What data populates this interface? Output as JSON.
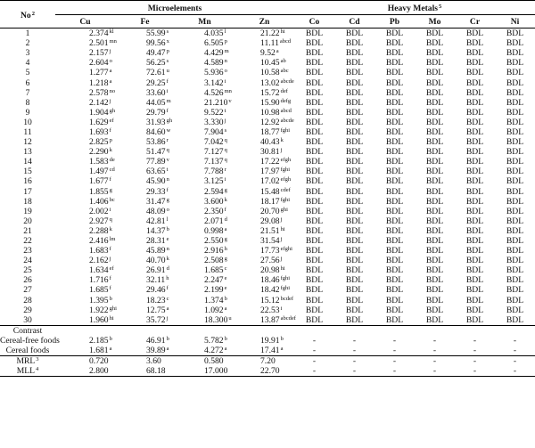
{
  "header": {
    "no": "No",
    "no_sup": "2",
    "microelements": "Microelements",
    "heavy_metals": "Heavy Metals",
    "heavy_metals_sup": "5",
    "cols": [
      "Cu",
      "Fe",
      "Mn",
      "Zn",
      "Co",
      "Cd",
      "Pb",
      "Mo",
      "Cr",
      "Ni"
    ]
  },
  "rows": [
    {
      "no": "1",
      "cu": "2.374",
      "cu_s": "kl",
      "fe": "55.99",
      "fe_s": "s",
      "mn": "4.035",
      "mn_s": "l",
      "zn": "21.22",
      "zn_s": "hi"
    },
    {
      "no": "2",
      "cu": "2.501",
      "cu_s": "mn",
      "fe": "99.56",
      "fe_s": "x",
      "mn": "6.505",
      "mn_s": "p",
      "zn": "11.11",
      "zn_s": "abcd"
    },
    {
      "no": "3",
      "cu": "2.157",
      "cu_s": "j",
      "fe": "49.47",
      "fe_s": "p",
      "mn": "4.429",
      "mn_s": "m",
      "zn": "9.52",
      "zn_s": "a"
    },
    {
      "no": "4",
      "cu": "2.604",
      "cu_s": "o",
      "fe": "56.25",
      "fe_s": "s",
      "mn": "4.589",
      "mn_s": "n",
      "zn": "10.45",
      "zn_s": "ab"
    },
    {
      "no": "5",
      "cu": "1.277",
      "cu_s": "a",
      "fe": "72.61",
      "fe_s": "u",
      "mn": "5.936",
      "mn_s": "o",
      "zn": "10.58",
      "zn_s": "abc"
    },
    {
      "no": "6",
      "cu": "1.218",
      "cu_s": "a",
      "fe": "29.25",
      "fe_s": "f",
      "mn": "3.142",
      "i_dummy": "",
      "mn_s": "i",
      "zn": "13.02",
      "zn_s": "abcde"
    },
    {
      "no": "7",
      "cu": "2.578",
      "cu_s": "no",
      "fe": "33.60",
      "fe_s": "i",
      "mn": "4.526",
      "mn_s": "mn",
      "zn": "15.72",
      "zn_s": "def"
    },
    {
      "no": "8",
      "cu": "2.142",
      "cu_s": "j",
      "fe": "44.05",
      "fe_s": "m",
      "mn": "21.210",
      "mn_s": "v",
      "zn": "15.90",
      "zn_s": "defg"
    },
    {
      "no": "9",
      "cu": "1.904",
      "cu_s": "gh",
      "fe": "29.79",
      "fe_s": "f",
      "mn": "9.522",
      "mn_s": "t",
      "zn": "10.98",
      "zn_s": "abcd"
    },
    {
      "no": "10",
      "cu": "1.629",
      "cu_s": "ef",
      "fe": "31.93",
      "fe_s": "gh",
      "mn": "3.330",
      "mn_s": "j",
      "zn": "12.92",
      "zn_s": "abcde"
    },
    {
      "no": "11",
      "cu": "1.693",
      "cu_s": "f",
      "fe": "84.60",
      "fe_s": "w",
      "mn": "7.904",
      "mn_s": "s",
      "zn": "18.77",
      "zn_s": "fghi"
    },
    {
      "no": "12",
      "cu": "2.825",
      "cu_s": "p",
      "fe": "53.86",
      "fe_s": "r",
      "mn": "7.042",
      "mn_s": "q",
      "zn": "40.43",
      "zn_s": "k"
    },
    {
      "no": "13",
      "cu": "2.290",
      "cu_s": "k",
      "fe": "51.47",
      "fe_s": "q",
      "mn": "7.127",
      "mn_s": "q",
      "zn": "30.81",
      "zn_s": "j"
    },
    {
      "no": "14",
      "cu": "1.583",
      "cu_s": "de",
      "fe": "77.89",
      "fe_s": "v",
      "mn": "7.137",
      "mn_s": "q",
      "zn": "17.22",
      "zn_s": "efgh"
    },
    {
      "no": "15",
      "cu": "1.497",
      "cu_s": "cd",
      "fe": "63.65",
      "fe_s": "t",
      "mn": "7.788",
      "mn_s": "r",
      "zn": "17.97",
      "zn_s": "fghi"
    },
    {
      "no": "16",
      "cu": "1.677",
      "cu_s": "f",
      "fe": "45.90",
      "fe_s": "n",
      "mn": "3.125",
      "mn_s": "i",
      "zn": "17.02",
      "zn_s": "efgh"
    },
    {
      "no": "17",
      "cu": "1.855",
      "cu_s": "g",
      "fe": "29.33",
      "fe_s": "f",
      "mn": "2.594",
      "mn_s": "g",
      "zn": "15.48",
      "zn_s": "cdef"
    },
    {
      "no": "18",
      "cu": "1.406",
      "cu_s": "bc",
      "fe": "31.47",
      "fe_s": "g",
      "mn": "3.600",
      "mn_s": "k",
      "zn": "18.17",
      "zn_s": "fghi"
    },
    {
      "no": "19",
      "cu": "2.002",
      "cu_s": "i",
      "fe": "48.09",
      "fe_s": "o",
      "mn": "2.350",
      "mn_s": "f",
      "zn": "20.70",
      "zn_s": "ghi"
    },
    {
      "no": "20",
      "cu": "2.927",
      "cu_s": "q",
      "fe": "42.81",
      "fe_s": "l",
      "mn": "2.071",
      "mn_s": "d",
      "zn": "29.08",
      "zn_s": "j"
    },
    {
      "no": "21",
      "cu": "2.288",
      "cu_s": "k",
      "fe": "14.37",
      "fe_s": "b",
      "mn": "0.998",
      "mn_s": "a",
      "zn": "21.51",
      "zn_s": "hi"
    },
    {
      "no": "22",
      "cu": "2.416",
      "cu_s": "lm",
      "fe": "28.31",
      "fe_s": "e",
      "mn": "2.550",
      "mn_s": "g",
      "zn": "31.54",
      "zn_s": "j"
    },
    {
      "no": "23",
      "cu": "1.683",
      "cu_s": "f",
      "fe": "45.89",
      "fe_s": "n",
      "mn": "2.916",
      "mn_s": "h",
      "zn": "17.73",
      "zn_s": "efghi"
    },
    {
      "no": "24",
      "cu": "2.162",
      "cu_s": "j",
      "fe": "40.70",
      "fe_s": "k",
      "mn": "2.508",
      "mn_s": "g",
      "zn": "27.56",
      "zn_s": "j"
    },
    {
      "no": "25",
      "cu": "1.634",
      "cu_s": "ef",
      "fe": "26.91",
      "fe_s": "d",
      "mn": "1.685",
      "mn_s": "c",
      "zn": "20.98",
      "zn_s": "hi"
    },
    {
      "no": "26",
      "cu": "1.716",
      "cu_s": "f",
      "fe": "32.11",
      "fe_s": "h",
      "mn": "2.247",
      "mn_s": "e",
      "zn": "18.46",
      "zn_s": "fghi"
    },
    {
      "no": "27",
      "cu": "1.685",
      "cu_s": "f",
      "fe": "29.46",
      "fe_s": "f",
      "mn": "2.199",
      "mn_s": "e",
      "zn": "18.42",
      "zn_s": "fghi"
    },
    {
      "no": "28",
      "cu": "1.395",
      "cu_s": "b",
      "fe": "18.23",
      "fe_s": "c",
      "mn": "1.374",
      "mn_s": "b",
      "zn": "15.12",
      "zn_s": "bcdef"
    },
    {
      "no": "29",
      "cu": "1.922",
      "cu_s": "ghi",
      "fe": "12.75",
      "fe_s": "a",
      "mn": "1.092",
      "mn_s": "a",
      "zn": "22.53",
      "zn_s": "i"
    },
    {
      "no": "30",
      "cu": "1.960",
      "cu_s": "hi",
      "fe": "35.72",
      "fe_s": "j",
      "mn": "18.300",
      "mn_s": "u",
      "zn": "13.87",
      "zn_s": "abcdef"
    }
  ],
  "bdl": "BDL",
  "contrast": {
    "label": "Contrast",
    "rows": [
      {
        "label": "Cereal-free foods",
        "cu": "2.185",
        "cu_s": "b",
        "fe": "46.91",
        "fe_s": "b",
        "mn": "5.782",
        "mn_s": "b",
        "zn": "19.91",
        "zn_s": "b"
      },
      {
        "label": "Cereal foods",
        "cu": "1.681",
        "cu_s": "a",
        "fe": "39.89",
        "fe_s": "a",
        "mn": "4.272",
        "mn_s": "a",
        "zn": "17.41",
        "zn_s": "a"
      }
    ]
  },
  "limits": [
    {
      "label": "MRL",
      "sup": "3",
      "cu": "0.720",
      "fe": "3.60",
      "mn": "0.580",
      "zn": "7.20"
    },
    {
      "label": "MLL",
      "sup": "4",
      "cu": "2.800",
      "fe": "68.18",
      "mn": "17.000",
      "zn": "22.70"
    }
  ],
  "dash": "-"
}
